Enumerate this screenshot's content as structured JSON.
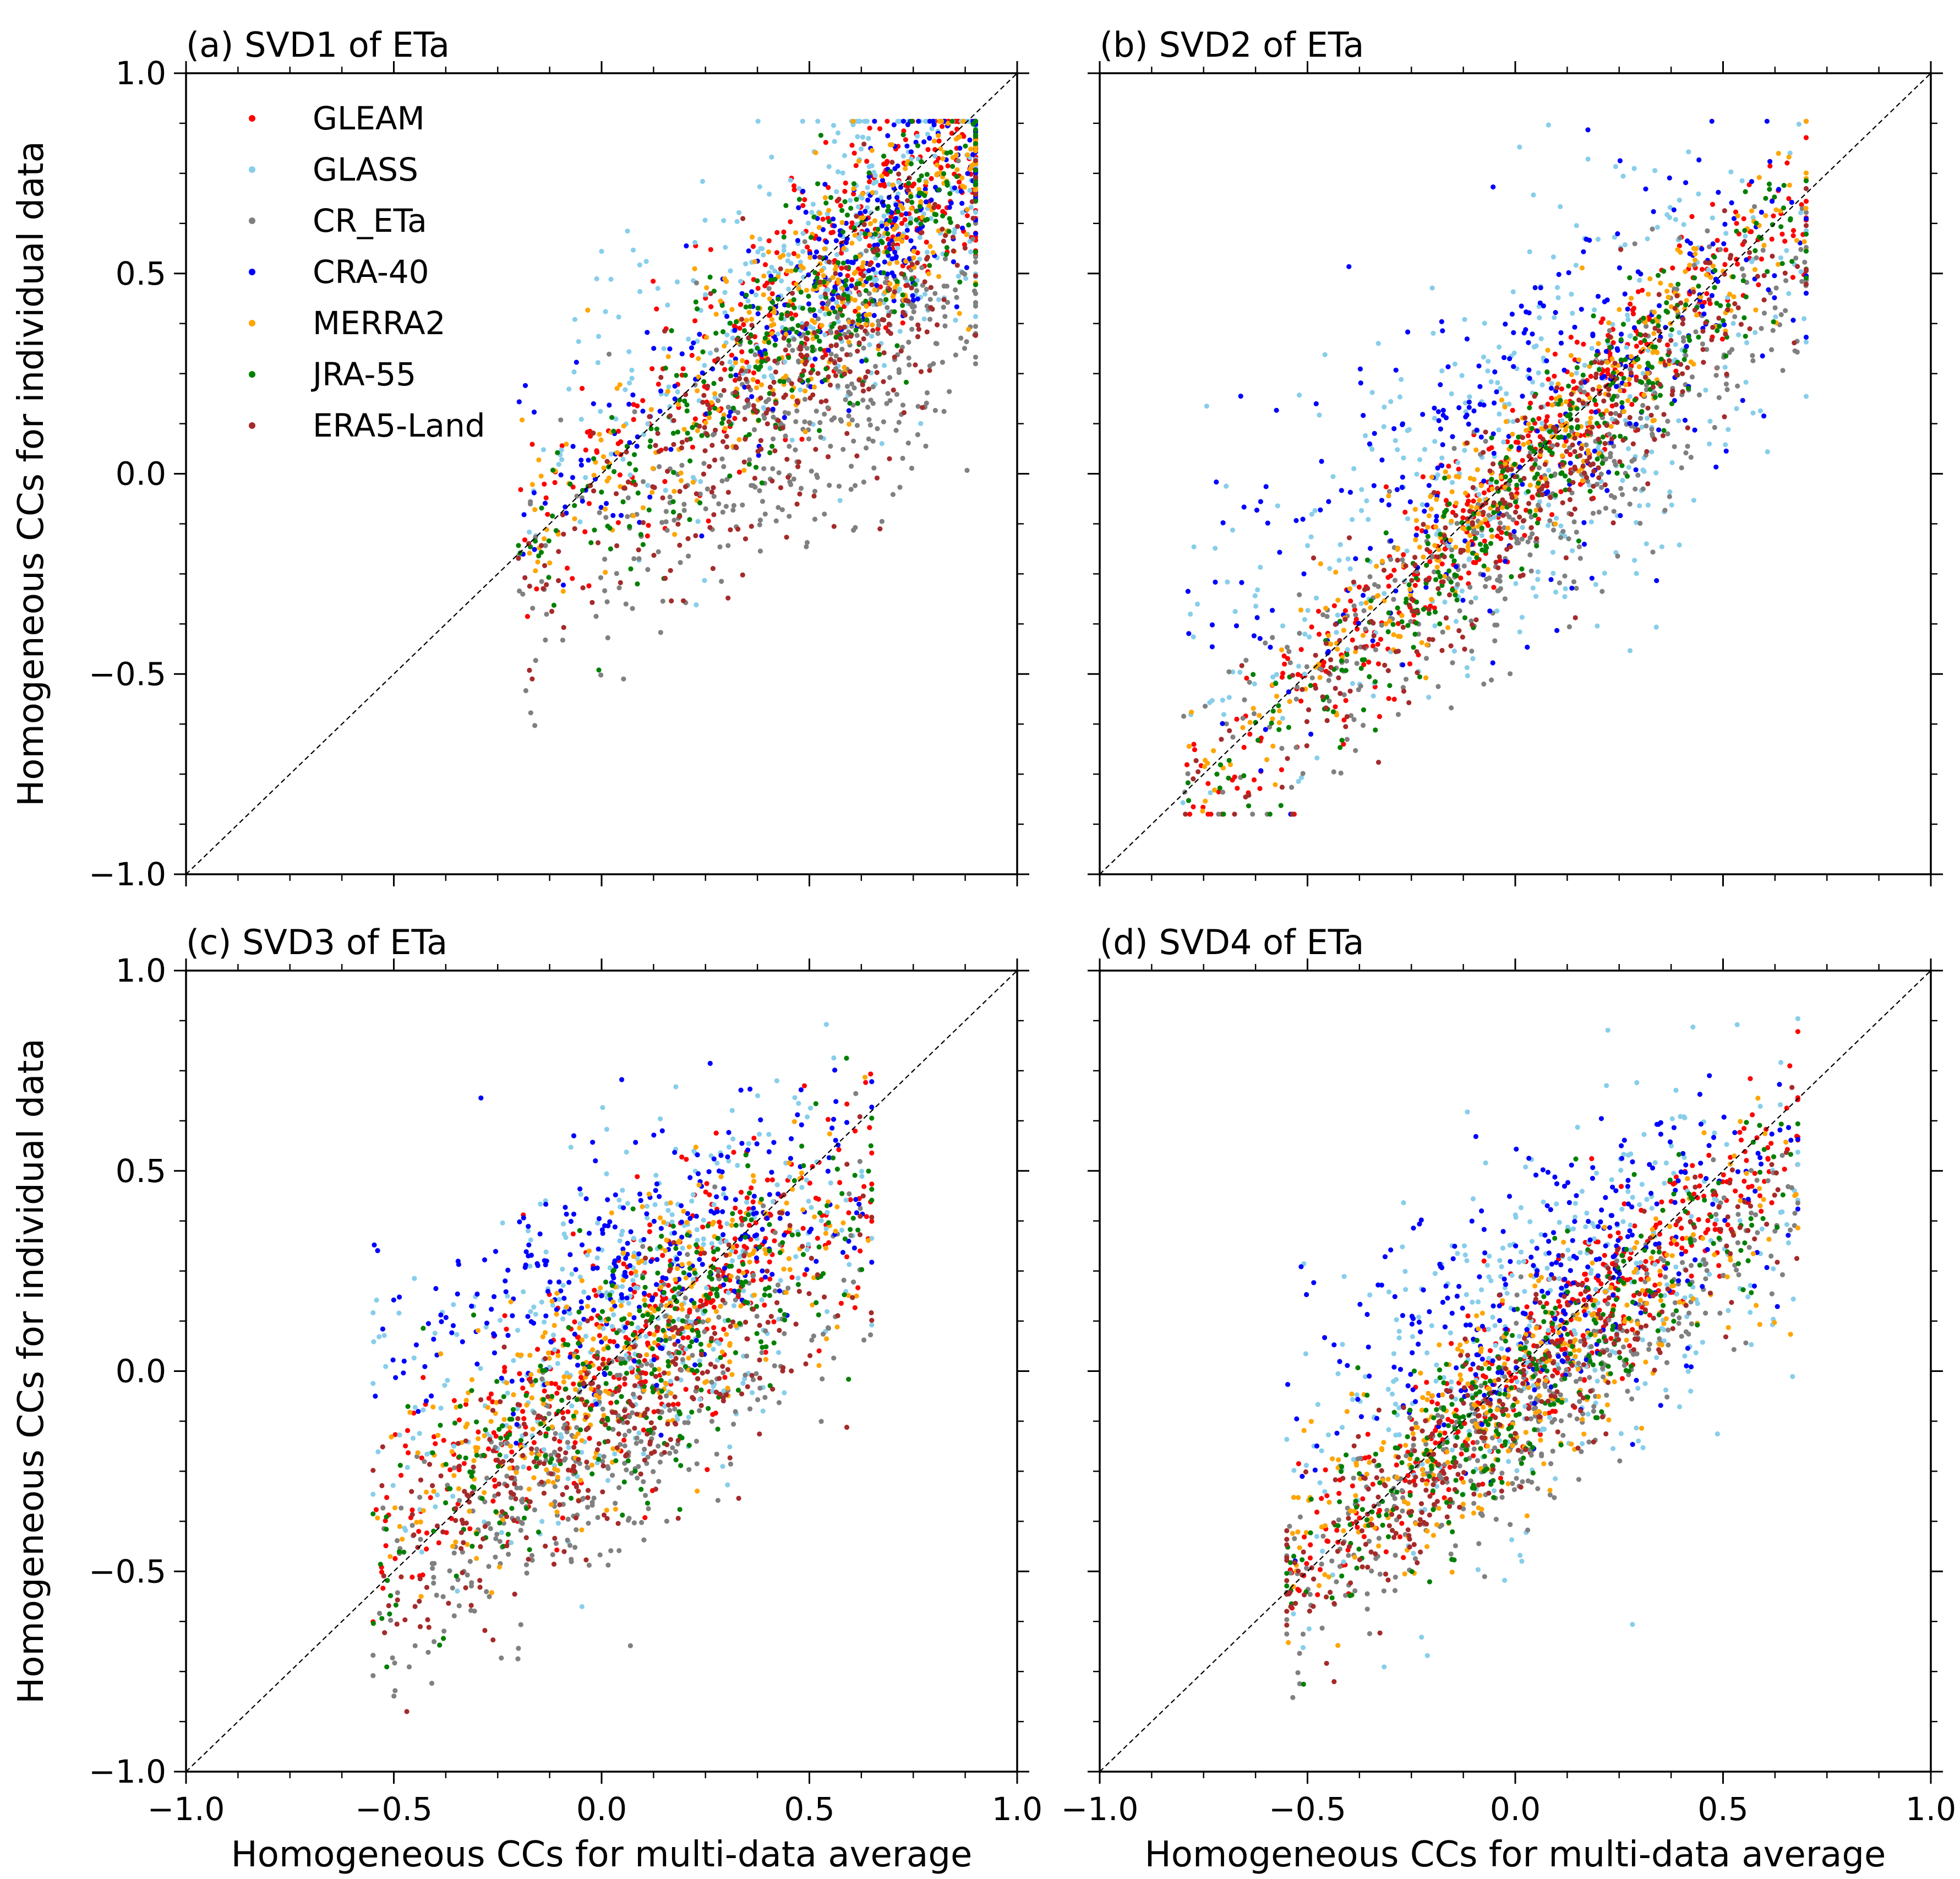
{
  "chart_data": [
    {
      "type": "scatter",
      "panel": "a",
      "title": "(a) SVD1 of ETa",
      "xlabel": "",
      "ylabel": "Homogeneous CCs for individual data",
      "xlim": [
        -1.0,
        1.0
      ],
      "ylim": [
        -1.0,
        1.0
      ],
      "xticks": [
        "",
        "",
        "",
        "",
        ""
      ],
      "yticks": [
        "−1.0",
        "−0.5",
        "0.0",
        "0.5",
        "1.0"
      ],
      "reference_line": "y = x (dashed)",
      "legend": true,
      "legend_position": "top-left",
      "grid": false,
      "point_clouds": [
        {
          "name": "GLEAM",
          "count": 420,
          "x_range": [
            -0.2,
            0.9
          ],
          "x_mode": 0.7,
          "slope": 0.9,
          "intercept": 0.02,
          "spread": 0.13
        },
        {
          "name": "GLASS",
          "count": 380,
          "x_range": [
            -0.2,
            0.9
          ],
          "x_mode": 0.6,
          "slope": 0.72,
          "intercept": 0.14,
          "spread": 0.2
        },
        {
          "name": "CR_ETa",
          "count": 380,
          "x_range": [
            -0.2,
            0.9
          ],
          "x_mode": 0.55,
          "slope": 0.7,
          "intercept": -0.2,
          "spread": 0.17
        },
        {
          "name": "CRA-40",
          "count": 320,
          "x_range": [
            -0.2,
            0.9
          ],
          "x_mode": 0.65,
          "slope": 0.8,
          "intercept": 0.05,
          "spread": 0.13
        },
        {
          "name": "MERRA2",
          "count": 320,
          "x_range": [
            -0.2,
            0.9
          ],
          "x_mode": 0.6,
          "slope": 0.85,
          "intercept": 0.0,
          "spread": 0.14
        },
        {
          "name": "JRA-55",
          "count": 330,
          "x_range": [
            -0.2,
            0.9
          ],
          "x_mode": 0.55,
          "slope": 0.9,
          "intercept": -0.07,
          "spread": 0.14
        },
        {
          "name": "ERA5-Land",
          "count": 300,
          "x_range": [
            -0.2,
            0.9
          ],
          "x_mode": 0.5,
          "slope": 0.75,
          "intercept": -0.12,
          "spread": 0.16
        }
      ]
    },
    {
      "type": "scatter",
      "panel": "b",
      "title": "(b) SVD2 of ETa",
      "xlabel": "",
      "ylabel": "",
      "xlim": [
        -1.0,
        1.0
      ],
      "ylim": [
        -1.0,
        1.0
      ],
      "xticks": [
        "",
        "",
        "",
        "",
        ""
      ],
      "yticks": [
        "",
        "",
        "",
        "",
        ""
      ],
      "reference_line": "y = x (dashed)",
      "legend": false,
      "grid": false,
      "point_clouds": [
        {
          "name": "GLEAM",
          "count": 420,
          "x_range": [
            -0.8,
            0.7
          ],
          "x_mode": 0.1,
          "slope": 1.05,
          "intercept": 0.0,
          "spread": 0.1
        },
        {
          "name": "GLASS",
          "count": 380,
          "x_range": [
            -0.8,
            0.7
          ],
          "x_mode": 0.1,
          "slope": 0.6,
          "intercept": 0.05,
          "spread": 0.28
        },
        {
          "name": "CR_ETa",
          "count": 380,
          "x_range": [
            -0.8,
            0.7
          ],
          "x_mode": 0.1,
          "slope": 0.85,
          "intercept": -0.12,
          "spread": 0.15
        },
        {
          "name": "CRA-40",
          "count": 320,
          "x_range": [
            -0.8,
            0.7
          ],
          "x_mode": 0.1,
          "slope": 0.7,
          "intercept": 0.15,
          "spread": 0.22
        },
        {
          "name": "MERRA2",
          "count": 320,
          "x_range": [
            -0.8,
            0.7
          ],
          "x_mode": 0.1,
          "slope": 1.0,
          "intercept": 0.0,
          "spread": 0.1
        },
        {
          "name": "JRA-55",
          "count": 330,
          "x_range": [
            -0.8,
            0.7
          ],
          "x_mode": 0.1,
          "slope": 1.0,
          "intercept": -0.05,
          "spread": 0.1
        },
        {
          "name": "ERA5-Land",
          "count": 300,
          "x_range": [
            -0.8,
            0.7
          ],
          "x_mode": 0.1,
          "slope": 0.95,
          "intercept": -0.08,
          "spread": 0.12
        }
      ]
    },
    {
      "type": "scatter",
      "panel": "c",
      "title": "(c) SVD3 of ETa",
      "xlabel": "Homogeneous CCs for multi-data average",
      "ylabel": "Homogeneous CCs for individual data",
      "xlim": [
        -1.0,
        1.0
      ],
      "ylim": [
        -1.0,
        1.0
      ],
      "xticks": [
        "−1.0",
        "−0.5",
        "0.0",
        "0.5",
        "1.0"
      ],
      "yticks": [
        "−1.0",
        "−0.5",
        "0.0",
        "0.5",
        "1.0"
      ],
      "reference_line": "y = x (dashed)",
      "legend": false,
      "grid": false,
      "point_clouds": [
        {
          "name": "GLEAM",
          "count": 420,
          "x_range": [
            -0.55,
            0.65
          ],
          "x_mode": 0.1,
          "slope": 0.7,
          "intercept": 0.03,
          "spread": 0.14
        },
        {
          "name": "GLASS",
          "count": 380,
          "x_range": [
            -0.55,
            0.65
          ],
          "x_mode": 0.1,
          "slope": 0.55,
          "intercept": 0.1,
          "spread": 0.22
        },
        {
          "name": "CR_ETa",
          "count": 380,
          "x_range": [
            -0.55,
            0.65
          ],
          "x_mode": 0.0,
          "slope": 0.75,
          "intercept": -0.2,
          "spread": 0.15
        },
        {
          "name": "CRA-40",
          "count": 320,
          "x_range": [
            -0.55,
            0.65
          ],
          "x_mode": 0.1,
          "slope": 0.35,
          "intercept": 0.25,
          "spread": 0.15
        },
        {
          "name": "MERRA2",
          "count": 320,
          "x_range": [
            -0.55,
            0.65
          ],
          "x_mode": 0.1,
          "slope": 0.7,
          "intercept": 0.0,
          "spread": 0.16
        },
        {
          "name": "JRA-55",
          "count": 330,
          "x_range": [
            -0.55,
            0.65
          ],
          "x_mode": 0.1,
          "slope": 0.75,
          "intercept": -0.05,
          "spread": 0.16
        },
        {
          "name": "ERA5-Land",
          "count": 300,
          "x_range": [
            -0.55,
            0.65
          ],
          "x_mode": 0.0,
          "slope": 0.7,
          "intercept": -0.15,
          "spread": 0.15
        }
      ]
    },
    {
      "type": "scatter",
      "panel": "d",
      "title": "(d) SVD4 of ETa",
      "xlabel": "Homogeneous CCs for multi-data average",
      "ylabel": "",
      "xlim": [
        -1.0,
        1.0
      ],
      "ylim": [
        -1.0,
        1.0
      ],
      "xticks": [
        "−1.0",
        "−0.5",
        "0.0",
        "0.5",
        "1.0"
      ],
      "yticks": [
        "",
        "",
        "",
        "",
        ""
      ],
      "reference_line": "y = x (dashed)",
      "legend": false,
      "grid": false,
      "point_clouds": [
        {
          "name": "GLEAM",
          "count": 420,
          "x_range": [
            -0.55,
            0.68
          ],
          "x_mode": 0.1,
          "slope": 0.9,
          "intercept": 0.0,
          "spread": 0.1
        },
        {
          "name": "GLASS",
          "count": 380,
          "x_range": [
            -0.55,
            0.68
          ],
          "x_mode": 0.1,
          "slope": 0.5,
          "intercept": 0.08,
          "spread": 0.22
        },
        {
          "name": "CR_ETa",
          "count": 380,
          "x_range": [
            -0.55,
            0.68
          ],
          "x_mode": 0.0,
          "slope": 0.8,
          "intercept": -0.12,
          "spread": 0.12
        },
        {
          "name": "CRA-40",
          "count": 320,
          "x_range": [
            -0.55,
            0.68
          ],
          "x_mode": 0.1,
          "slope": 0.5,
          "intercept": 0.15,
          "spread": 0.17
        },
        {
          "name": "MERRA2",
          "count": 320,
          "x_range": [
            -0.55,
            0.68
          ],
          "x_mode": 0.0,
          "slope": 0.7,
          "intercept": -0.05,
          "spread": 0.14
        },
        {
          "name": "JRA-55",
          "count": 330,
          "x_range": [
            -0.55,
            0.68
          ],
          "x_mode": 0.0,
          "slope": 0.85,
          "intercept": -0.05,
          "spread": 0.12
        },
        {
          "name": "ERA5-Land",
          "count": 300,
          "x_range": [
            -0.55,
            0.68
          ],
          "x_mode": -0.1,
          "slope": 0.85,
          "intercept": -0.08,
          "spread": 0.12
        }
      ]
    }
  ],
  "legend": {
    "entries": [
      {
        "name": "GLEAM",
        "color": "#ff0000"
      },
      {
        "name": "GLASS",
        "color": "#87ceeb"
      },
      {
        "name": "CR_ETa",
        "color": "#808080"
      },
      {
        "name": "CRA-40",
        "color": "#0000ff"
      },
      {
        "name": "MERRA2",
        "color": "#ffa500"
      },
      {
        "name": "JRA-55",
        "color": "#008000"
      },
      {
        "name": "ERA5-Land",
        "color": "#a52a2a"
      }
    ]
  }
}
